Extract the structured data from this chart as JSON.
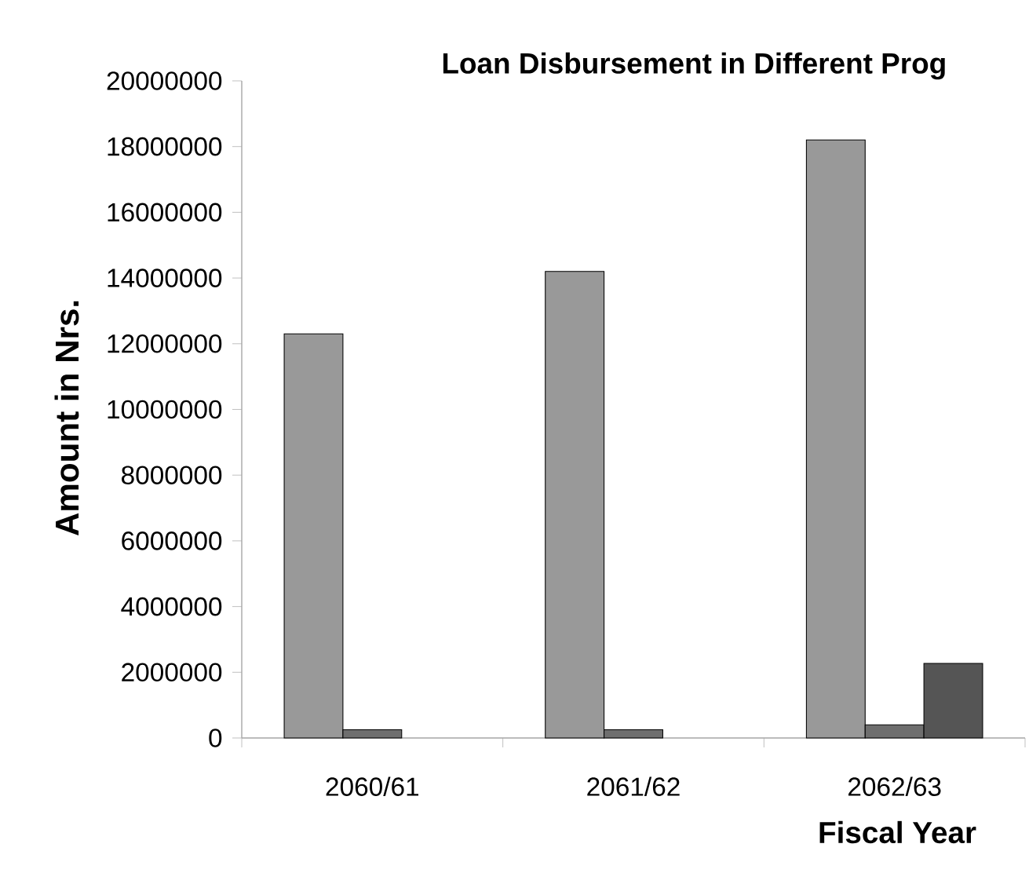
{
  "chart_data": {
    "type": "bar",
    "title": "Loan Disbursement in Different Prog",
    "xlabel": "Fiscal Year",
    "ylabel": "Amount in Nrs.",
    "categories": [
      "2060/61",
      "2061/62",
      "2062/63"
    ],
    "series": [
      {
        "color": "#999999",
        "values": [
          12300000,
          14200000,
          18200000
        ]
      },
      {
        "color": "#6e6e6e",
        "values": [
          250000,
          250000,
          400000
        ]
      },
      {
        "color": "#555555",
        "values": [
          null,
          null,
          2270000
        ]
      }
    ],
    "ylim": [
      0,
      20000000
    ],
    "yticks": [
      0,
      2000000,
      4000000,
      6000000,
      8000000,
      10000000,
      12000000,
      14000000,
      16000000,
      18000000,
      20000000
    ],
    "grid": false
  }
}
